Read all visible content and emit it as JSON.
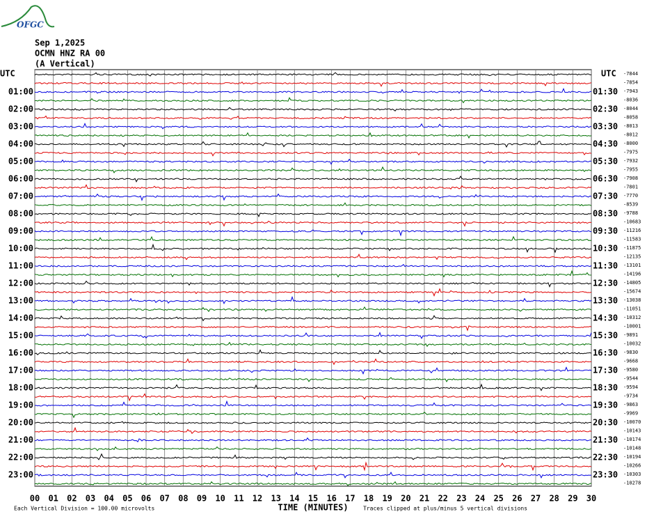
{
  "header": {
    "logo": "OFGC",
    "date": "Sep 1,2025",
    "station": "OCMN HNZ RA 00",
    "component": "(A Vertical)"
  },
  "left_axis": {
    "title": "UTC",
    "labels": [
      "01:00",
      "02:00",
      "03:00",
      "04:00",
      "05:00",
      "06:00",
      "07:00",
      "08:00",
      "09:00",
      "10:00",
      "11:00",
      "12:00",
      "13:00",
      "14:00",
      "15:00",
      "16:00",
      "17:00",
      "18:00",
      "19:00",
      "20:00",
      "21:00",
      "22:00",
      "23:00"
    ]
  },
  "right_axis": {
    "title": "UTC",
    "labels": [
      "01:30",
      "02:30",
      "03:30",
      "04:30",
      "05:30",
      "06:30",
      "07:30",
      "08:30",
      "09:30",
      "10:30",
      "11:30",
      "12:30",
      "13:30",
      "14:30",
      "15:30",
      "16:30",
      "17:30",
      "18:30",
      "19:30",
      "20:30",
      "21:30",
      "22:30",
      "23:30"
    ]
  },
  "trace_offsets": [
    -7844,
    -7854,
    -7943,
    -8036,
    -8044,
    -8058,
    -8013,
    -8012,
    -8000,
    -7975,
    -7932,
    -7955,
    -7908,
    -7801,
    -7770,
    -8539,
    -9788,
    -10683,
    -11216,
    -11583,
    -11875,
    -12135,
    -13101,
    -14196,
    -14805,
    -15674,
    -13038,
    -11051,
    -10312,
    -10001,
    -9891,
    -10032,
    -9830,
    -9668,
    -9580,
    -9544,
    -9594,
    -9734,
    -9863,
    -9969,
    -10070,
    -10143,
    -10174,
    -10148,
    -10194,
    -10266,
    -10303,
    -10278
  ],
  "trace_colors": [
    "#000000",
    "#e00000",
    "#0000e0",
    "#007000"
  ],
  "x_axis": {
    "labels": [
      "00",
      "01",
      "02",
      "03",
      "04",
      "05",
      "06",
      "07",
      "08",
      "09",
      "10",
      "11",
      "12",
      "13",
      "14",
      "15",
      "16",
      "17",
      "18",
      "19",
      "20",
      "21",
      "22",
      "23",
      "24",
      "25",
      "26",
      "27",
      "28",
      "29",
      "30"
    ],
    "title": "TIME (MINUTES)"
  },
  "footer": {
    "scale": "Each Vertical Division =  100.00 microvolts",
    "clip": "Traces clipped at plus/minus 5 vertical divisions"
  }
}
